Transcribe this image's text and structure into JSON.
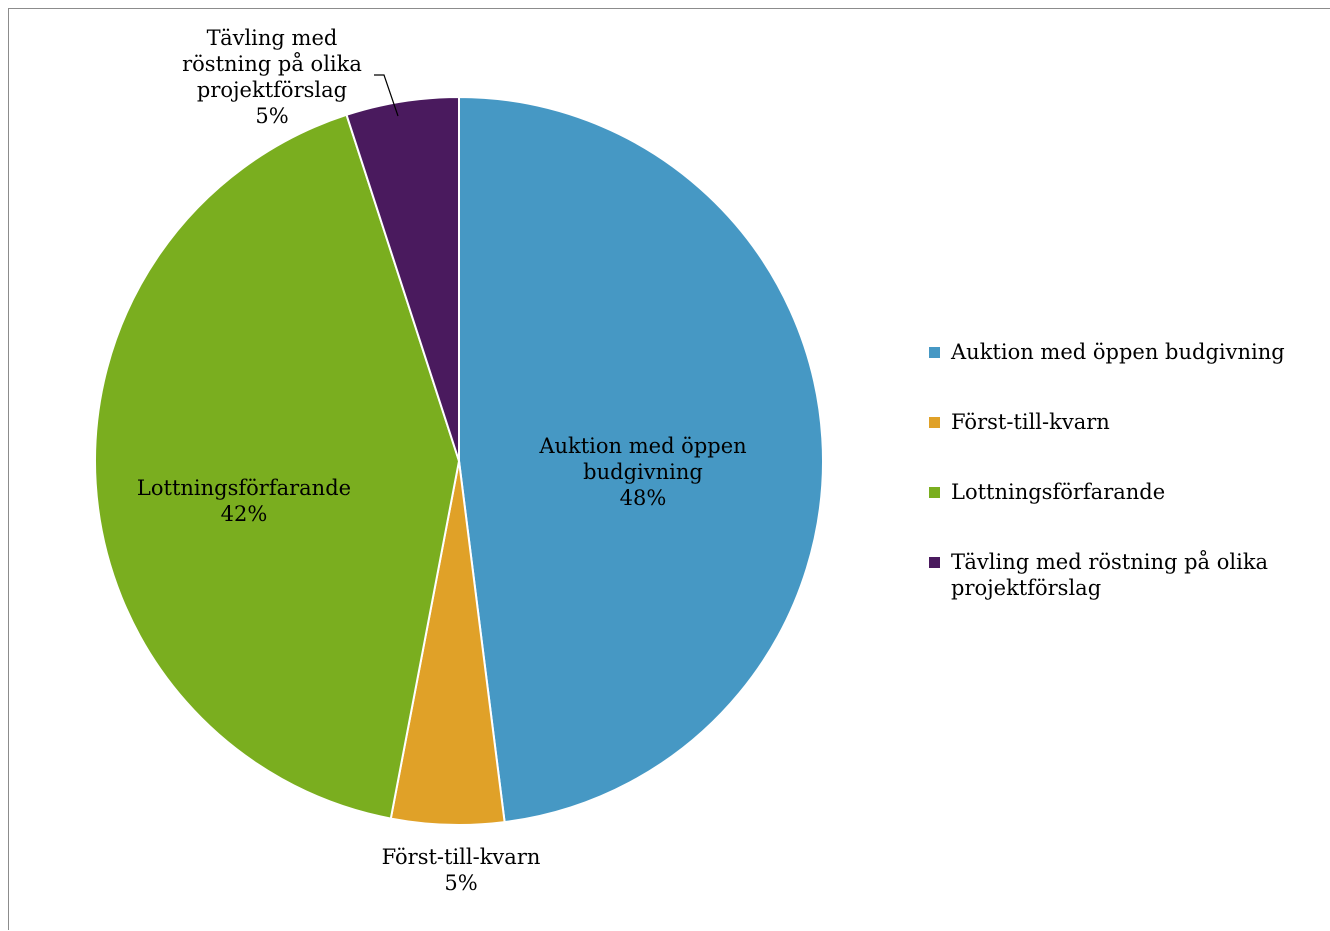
{
  "chart_data": {
    "type": "pie",
    "title": "",
    "slices": [
      {
        "label": "Auktion med öppen budgivning",
        "value": 48,
        "color": "#4698c4",
        "label_lines": [
          "Auktion med öppen",
          "budgivning"
        ],
        "pct_text": "48%"
      },
      {
        "label": "Först-till-kvarn",
        "value": 5,
        "color": "#e0a128",
        "label_lines": [
          "Först-till-kvarn"
        ],
        "pct_text": "5%"
      },
      {
        "label": "Lottningsförfarande",
        "value": 42,
        "color": "#7aae1f",
        "label_lines": [
          "Lottningsförfarande"
        ],
        "pct_text": "42%"
      },
      {
        "label": "Tävling med röstning på olika projektförslag",
        "value": 5,
        "color": "#4a1a5e",
        "label_lines": [
          "Tävling med",
          "röstning på olika",
          "projektförslag"
        ],
        "pct_text": "5%"
      }
    ],
    "legend": {
      "position": "right",
      "entries": [
        {
          "lines": [
            "Auktion med öppen budgivning"
          ],
          "color": "#4698c4"
        },
        {
          "lines": [
            "Först-till-kvarn"
          ],
          "color": "#e0a128"
        },
        {
          "lines": [
            "Lottningsförfarande"
          ],
          "color": "#7aae1f"
        },
        {
          "lines": [
            "Tävling med röstning på olika",
            "projektförslag"
          ],
          "color": "#4a1a5e"
        }
      ]
    }
  }
}
